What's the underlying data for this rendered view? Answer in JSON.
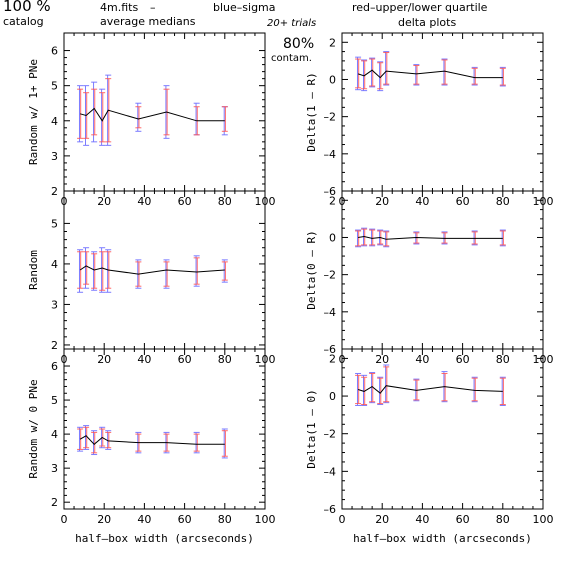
{
  "header": {
    "percent": "100 %",
    "catalog": "catalog",
    "file": "4m.fits",
    "dash": "–",
    "average": "average medians",
    "blue": "blue–sigma",
    "red": "red–upper/lower quartile",
    "trials": "20+ trials",
    "delta_title": "delta plots",
    "contam_pct": "80%",
    "contam": "contam."
  },
  "colors": {
    "sigma": "#6464ff",
    "quartile": "#ff5050",
    "line": "#000000"
  },
  "chart_data": [
    {
      "type": "line",
      "panel": "left-top",
      "ylabel": "Random w/ 1+ PNe",
      "xlabel": "",
      "xlim": [
        0,
        100
      ],
      "ylim": [
        2,
        6.5
      ],
      "xticks": [
        "0",
        "20",
        "40",
        "60",
        "80",
        "100"
      ],
      "yticks": [
        "2",
        "3",
        "4",
        "5",
        "6"
      ],
      "x": [
        8,
        11,
        15,
        19,
        22,
        37,
        51,
        66,
        80
      ],
      "values": [
        4.2,
        4.15,
        4.35,
        4.0,
        4.3,
        4.05,
        4.25,
        4.0,
        4.0
      ],
      "sigma_lo": [
        3.4,
        3.3,
        3.4,
        3.3,
        3.3,
        3.7,
        3.5,
        3.6,
        3.6
      ],
      "sigma_hi": [
        5.0,
        5.0,
        5.1,
        4.9,
        5.3,
        4.5,
        5.0,
        4.5,
        4.4
      ],
      "q_lo": [
        3.5,
        3.5,
        3.6,
        3.4,
        3.4,
        3.8,
        3.6,
        3.6,
        3.7
      ],
      "q_hi": [
        4.9,
        4.8,
        4.9,
        4.8,
        5.2,
        4.4,
        4.9,
        4.4,
        4.4
      ]
    },
    {
      "type": "line",
      "panel": "left-middle",
      "ylabel": "Random",
      "xlabel": "",
      "xlim": [
        0,
        100
      ],
      "ylim": [
        1.9,
        5.8
      ],
      "xticks": [
        "0",
        "20",
        "40",
        "60",
        "80",
        "100"
      ],
      "yticks": [
        "2",
        "3",
        "4",
        "5"
      ],
      "x": [
        8,
        11,
        15,
        19,
        22,
        37,
        51,
        66,
        80
      ],
      "values": [
        3.85,
        3.95,
        3.85,
        3.9,
        3.85,
        3.75,
        3.85,
        3.8,
        3.85
      ],
      "sigma_lo": [
        3.3,
        3.4,
        3.35,
        3.3,
        3.3,
        3.4,
        3.4,
        3.45,
        3.55
      ],
      "sigma_hi": [
        4.35,
        4.4,
        4.3,
        4.4,
        4.35,
        4.1,
        4.1,
        4.2,
        4.1
      ],
      "q_lo": [
        3.4,
        3.5,
        3.4,
        3.35,
        3.4,
        3.45,
        3.45,
        3.5,
        3.6
      ],
      "q_hi": [
        4.3,
        4.3,
        4.25,
        4.3,
        4.3,
        4.05,
        4.05,
        4.15,
        4.05
      ]
    },
    {
      "type": "line",
      "panel": "left-bottom",
      "ylabel": "Random w/ 0 PNe",
      "xlabel": "half–box width (arcseconds)",
      "xlim": [
        0,
        100
      ],
      "ylim": [
        1.8,
        6.5
      ],
      "xticks": [
        "0",
        "20",
        "40",
        "60",
        "80",
        "100"
      ],
      "yticks": [
        "2",
        "3",
        "4",
        "5",
        "6"
      ],
      "x": [
        8,
        11,
        15,
        19,
        22,
        37,
        51,
        66,
        80
      ],
      "values": [
        3.85,
        3.95,
        3.7,
        3.9,
        3.8,
        3.75,
        3.75,
        3.7,
        3.7
      ],
      "sigma_lo": [
        3.5,
        3.55,
        3.4,
        3.6,
        3.55,
        3.45,
        3.45,
        3.45,
        3.3
      ],
      "sigma_hi": [
        4.2,
        4.25,
        4.1,
        4.2,
        4.1,
        4.05,
        4.05,
        4.05,
        4.15
      ],
      "q_lo": [
        3.55,
        3.6,
        3.45,
        3.65,
        3.6,
        3.5,
        3.5,
        3.5,
        3.35
      ],
      "q_hi": [
        4.15,
        4.2,
        4.05,
        4.15,
        4.05,
        4.0,
        4.0,
        4.0,
        4.1
      ]
    },
    {
      "type": "line",
      "panel": "right-top",
      "ylabel": "Delta(1 – R)",
      "xlabel": "",
      "xlim": [
        0,
        100
      ],
      "ylim": [
        -6,
        2.5
      ],
      "xticks": [
        "0",
        "20",
        "40",
        "60",
        "80",
        "100"
      ],
      "yticks": [
        "–6",
        "–4",
        "–2",
        "0",
        "2"
      ],
      "x": [
        8,
        11,
        15,
        19,
        22,
        37,
        51,
        66,
        80
      ],
      "values": [
        0.3,
        0.2,
        0.5,
        0.1,
        0.45,
        0.3,
        0.45,
        0.1,
        0.1
      ],
      "sigma_lo": [
        -0.55,
        -0.6,
        -0.4,
        -0.6,
        -0.3,
        -0.3,
        -0.3,
        -0.3,
        -0.35
      ],
      "sigma_hi": [
        1.2,
        1.05,
        1.15,
        0.95,
        1.5,
        0.8,
        1.1,
        0.65,
        0.65
      ],
      "q_lo": [
        -0.45,
        -0.5,
        -0.35,
        -0.5,
        -0.25,
        -0.25,
        -0.25,
        -0.25,
        -0.3
      ],
      "q_hi": [
        1.1,
        1.0,
        1.1,
        0.9,
        1.45,
        0.75,
        1.05,
        0.6,
        0.6
      ]
    },
    {
      "type": "line",
      "panel": "right-middle",
      "ylabel": "Delta(0 – R)",
      "xlabel": "",
      "xlim": [
        0,
        100
      ],
      "ylim": [
        -6,
        2.5
      ],
      "xticks": [
        "0",
        "20",
        "40",
        "60",
        "80",
        "100"
      ],
      "yticks": [
        "–6",
        "–4",
        "–2",
        "0",
        "2"
      ],
      "x": [
        8,
        11,
        15,
        19,
        22,
        37,
        51,
        66,
        80
      ],
      "values": [
        0.0,
        0.05,
        -0.05,
        0.0,
        -0.1,
        0.0,
        -0.05,
        -0.05,
        -0.05
      ],
      "sigma_lo": [
        -0.5,
        -0.45,
        -0.45,
        -0.4,
        -0.5,
        -0.35,
        -0.35,
        -0.4,
        -0.45
      ],
      "sigma_hi": [
        0.4,
        0.5,
        0.45,
        0.4,
        0.35,
        0.3,
        0.3,
        0.35,
        0.4
      ],
      "q_lo": [
        -0.45,
        -0.4,
        -0.4,
        -0.35,
        -0.45,
        -0.3,
        -0.3,
        -0.35,
        -0.4
      ],
      "q_hi": [
        0.35,
        0.45,
        0.4,
        0.35,
        0.3,
        0.25,
        0.25,
        0.3,
        0.35
      ]
    },
    {
      "type": "line",
      "panel": "right-bottom",
      "ylabel": "Delta(1 – 0)",
      "xlabel": "half–box width (arcseconds)",
      "xlim": [
        0,
        100
      ],
      "ylim": [
        -6,
        2.5
      ],
      "xticks": [
        "0",
        "20",
        "40",
        "60",
        "80",
        "100"
      ],
      "yticks": [
        "–6",
        "–4",
        "–2",
        "0",
        "2"
      ],
      "x": [
        8,
        11,
        15,
        19,
        22,
        37,
        51,
        66,
        80
      ],
      "values": [
        0.35,
        0.25,
        0.5,
        0.15,
        0.55,
        0.3,
        0.5,
        0.3,
        0.25
      ],
      "sigma_lo": [
        -0.5,
        -0.5,
        -0.35,
        -0.45,
        -0.35,
        -0.25,
        -0.3,
        -0.3,
        -0.5
      ],
      "sigma_hi": [
        1.2,
        1.1,
        1.25,
        1.0,
        1.65,
        0.9,
        1.3,
        1.0,
        1.0
      ],
      "q_lo": [
        -0.4,
        -0.45,
        -0.3,
        -0.4,
        -0.3,
        -0.2,
        -0.25,
        -0.25,
        -0.45
      ],
      "q_hi": [
        1.1,
        1.0,
        1.2,
        0.95,
        1.55,
        0.85,
        1.2,
        0.95,
        0.95
      ]
    }
  ]
}
